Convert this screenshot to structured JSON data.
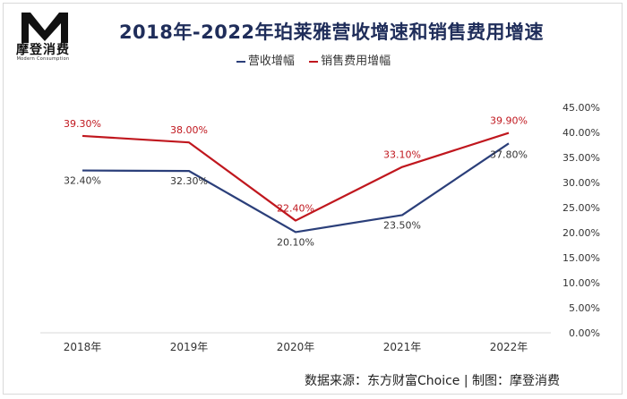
{
  "logo": {
    "mark": "M",
    "name": "摩登消费",
    "subtitle": "Modern Consumption"
  },
  "colors": {
    "revenue": "#2b3f7a",
    "expense": "#c0171e",
    "grid": "#d9d9d9",
    "axis": "#333333"
  },
  "chart_data": {
    "type": "line",
    "title": "2018年-2022年珀莱雅营收增速和销售费用增速",
    "categories": [
      "2018年",
      "2019年",
      "2020年",
      "2021年",
      "2022年"
    ],
    "series": [
      {
        "name": "营收增幅",
        "values": [
          32.4,
          32.3,
          20.1,
          23.5,
          37.8
        ],
        "labels": [
          "32.40%",
          "32.30%",
          "20.10%",
          "23.50%",
          "37.80%"
        ]
      },
      {
        "name": "销售费用增幅",
        "values": [
          39.3,
          38.0,
          22.4,
          33.1,
          39.9
        ],
        "labels": [
          "39.30%",
          "38.00%",
          "22.40%",
          "33.10%",
          "39.90%"
        ]
      }
    ],
    "ylim": [
      0,
      45
    ],
    "yticks": [
      "0.00%",
      "5.00%",
      "10.00%",
      "15.00%",
      "20.00%",
      "25.00%",
      "30.00%",
      "35.00%",
      "40.00%",
      "45.00%"
    ],
    "yaxis_position": "right",
    "legend": "top-center",
    "grid": false
  },
  "source": "数据来源：东方财富Choice  |  制图：摩登消费"
}
